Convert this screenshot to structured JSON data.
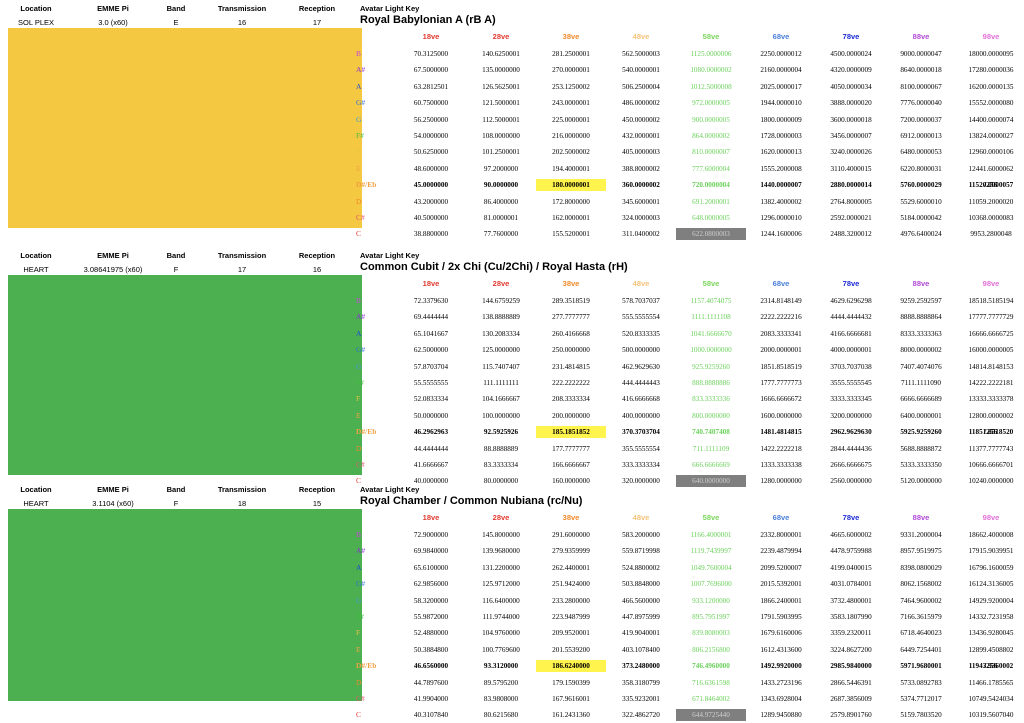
{
  "headers": {
    "location": "Location",
    "emme_pi": "EMME Pi",
    "band": "Band",
    "transmission": "Transmission",
    "reception": "Reception",
    "key": "Avatar Light Key"
  },
  "octaves": [
    "18ve",
    "28ve",
    "38ve",
    "48ve",
    "58ve",
    "68ve",
    "78ve",
    "88ve",
    "98ve"
  ],
  "octave_colors": [
    "#e03a2f",
    "#e03a2f",
    "#f08a2b",
    "#f5c27a",
    "#7ad65b",
    "#4a7fd8",
    "#1c2bd6",
    "#b04ad6",
    "#e36fd6"
  ],
  "notes": [
    "B",
    "A#",
    "A",
    "G#",
    "G",
    "F#",
    "F",
    "E",
    "D#/Eb",
    "D",
    "C#",
    "C"
  ],
  "note_colors": [
    "#c548d8",
    "#8e2fd6",
    "#1d4bd6",
    "#2f6fd6",
    "#3c9ad6",
    "#3fbf3f",
    "#e6c540",
    "#f4a340",
    "#f0a040",
    "#f08a2b",
    "#e0556b",
    "#e03a2f"
  ],
  "suffix": "/256",
  "sections": [
    {
      "location": "SOL PLEX",
      "emme_pi": "3.0 (x60)",
      "band": "E",
      "transmission": "16",
      "reception": "17",
      "title": "Royal Babylonian A (rB A)",
      "swatch": "#f5c842",
      "bold_row": 8,
      "rows": [
        [
          "70.3125000",
          "140.6250001",
          "281.2500001",
          "562.5000003",
          "1125.0000006",
          "2250.0000012",
          "4500.0000024",
          "9000.0000047",
          "18000.0000095"
        ],
        [
          "67.5000000",
          "135.0000000",
          "270.0000001",
          "540.0000001",
          "1080.0000002",
          "2160.0000004",
          "4320.0000009",
          "8640.0000018",
          "17280.0000036"
        ],
        [
          "63.2812501",
          "126.5625001",
          "253.1250002",
          "506.2500004",
          "1012.5000008",
          "2025.0000017",
          "4050.0000034",
          "8100.0000067",
          "16200.0000135"
        ],
        [
          "60.7500000",
          "121.5000001",
          "243.0000001",
          "486.0000002",
          "972.0000005",
          "1944.0000010",
          "3888.0000020",
          "7776.0000040",
          "15552.0000080"
        ],
        [
          "56.2500000",
          "112.5000001",
          "225.0000001",
          "450.0000002",
          "900.0000005",
          "1800.0000009",
          "3600.0000018",
          "7200.0000037",
          "14400.0000074"
        ],
        [
          "54.0000000",
          "108.0000000",
          "216.0000000",
          "432.0000001",
          "864.0000002",
          "1728.0000003",
          "3456.0000007",
          "6912.0000013",
          "13824.0000027"
        ],
        [
          "50.6250000",
          "101.2500001",
          "202.5000002",
          "405.0000003",
          "810.0000007",
          "1620.0000013",
          "3240.0000026",
          "6480.0000053",
          "12960.0000106"
        ],
        [
          "48.6000000",
          "97.2000000",
          "194.4000001",
          "388.8000002",
          "777.6000004",
          "1555.2000008",
          "3110.4000015",
          "6220.8000031",
          "12441.6000062"
        ],
        [
          "45.0000000",
          "90.0000000",
          "180.0000001",
          "360.0000002",
          "720.0000004",
          "1440.0000007",
          "2880.0000014",
          "5760.0000029",
          "11520.0000057"
        ],
        [
          "43.2000000",
          "86.4000000",
          "172.8000000",
          "345.6000001",
          "691.2000001",
          "1382.4000002",
          "2764.8000005",
          "5529.6000010",
          "11059.2000020"
        ],
        [
          "40.5000000",
          "81.0000001",
          "162.0000001",
          "324.0000003",
          "648.0000005",
          "1296.0000010",
          "2592.0000021",
          "5184.0000042",
          "10368.0000083"
        ],
        [
          "38.8800000",
          "77.7600000",
          "155.5200001",
          "311.0400002",
          "622.0800003",
          "1244.1600006",
          "2488.3200012",
          "4976.6400024",
          "9953.2800048"
        ]
      ]
    },
    {
      "location": "HEART",
      "emme_pi": "3.08641975 (x60)",
      "band": "F",
      "transmission": "17",
      "reception": "16",
      "title": "Common Cubit / 2x Chi (Cu/2Chi) / Royal Hasta (rH)",
      "swatch": "#4caf50",
      "bold_row": 8,
      "rows": [
        [
          "72.3379630",
          "144.6759259",
          "289.3518519",
          "578.7037037",
          "1157.4074075",
          "2314.8148149",
          "4629.6296298",
          "9259.2592597",
          "18518.5185194"
        ],
        [
          "69.4444444",
          "138.8888889",
          "277.7777777",
          "555.5555554",
          "1111.1111108",
          "2222.2222216",
          "4444.4444432",
          "8888.8888864",
          "17777.7777729"
        ],
        [
          "65.1041667",
          "130.2083334",
          "260.4166668",
          "520.8333335",
          "1041.6666670",
          "2083.3333341",
          "4166.6666681",
          "8333.3333363",
          "16666.6666725"
        ],
        [
          "62.5000000",
          "125.0000000",
          "250.0000000",
          "500.0000000",
          "1000.0000000",
          "2000.0000001",
          "4000.0000001",
          "8000.0000002",
          "16000.0000005"
        ],
        [
          "57.8703704",
          "115.7407407",
          "231.4814815",
          "462.9629630",
          "925.9259260",
          "1851.8518519",
          "3703.7037038",
          "7407.4074076",
          "14814.8148153"
        ],
        [
          "55.5555555",
          "111.1111111",
          "222.2222222",
          "444.4444443",
          "888.8888886",
          "1777.7777773",
          "3555.5555545",
          "7111.1111090",
          "14222.2222181"
        ],
        [
          "52.0833334",
          "104.1666667",
          "208.3333334",
          "416.6666668",
          "833.3333336",
          "1666.6666672",
          "3333.3333345",
          "6666.6666689",
          "13333.3333378"
        ],
        [
          "50.0000000",
          "100.0000000",
          "200.0000000",
          "400.0000000",
          "800.0000000",
          "1600.0000000",
          "3200.0000000",
          "6400.0000001",
          "12800.0000002"
        ],
        [
          "46.2962963",
          "92.5925926",
          "185.1851852",
          "370.3703704",
          "740.7407408",
          "1481.4814815",
          "2962.9629630",
          "5925.9259260",
          "11851.8518520"
        ],
        [
          "44.4444444",
          "88.8888889",
          "177.7777777",
          "355.5555554",
          "711.1111109",
          "1422.2222218",
          "2844.4444436",
          "5688.8888872",
          "11377.7777743"
        ],
        [
          "41.6666667",
          "83.3333334",
          "166.6666667",
          "333.3333334",
          "666.6666669",
          "1333.3333338",
          "2666.6666675",
          "5333.3333350",
          "10666.6666701"
        ],
        [
          "40.0000000",
          "80.0000000",
          "160.0000000",
          "320.0000000",
          "640.0000000",
          "1280.0000000",
          "2560.0000000",
          "5120.0000000",
          "10240.0000000"
        ]
      ]
    },
    {
      "location": "HEART",
      "emme_pi": "3.1104 (x60)",
      "band": "F",
      "transmission": "18",
      "reception": "15",
      "title": "Royal Chamber / Common Nubiana (rc/Nu)",
      "swatch": "#4caf50",
      "bold_row": 8,
      "rows": [
        [
          "72.9000000",
          "145.8000000",
          "291.6000000",
          "583.2000000",
          "1166.4000001",
          "2332.8000001",
          "4665.6000002",
          "9331.2000004",
          "18662.4000008"
        ],
        [
          "69.9840000",
          "139.9680000",
          "279.9359999",
          "559.8719998",
          "1119.7439997",
          "2239.4879994",
          "4478.9759988",
          "8957.9519975",
          "17915.9039951"
        ],
        [
          "65.6100000",
          "131.2200000",
          "262.4400001",
          "524.8800002",
          "1049.7600004",
          "2099.5200007",
          "4199.0400015",
          "8398.0800029",
          "16796.1600059"
        ],
        [
          "62.9856000",
          "125.9712000",
          "251.9424000",
          "503.8848000",
          "1007.7696000",
          "2015.5392001",
          "4031.0784001",
          "8062.1568002",
          "16124.3136005"
        ],
        [
          "58.3200000",
          "116.6400000",
          "233.2800000",
          "466.5600000",
          "933.1200000",
          "1866.2400001",
          "3732.4800001",
          "7464.9600002",
          "14929.9200004"
        ],
        [
          "55.9872000",
          "111.9744000",
          "223.9487999",
          "447.8975999",
          "895.7951997",
          "1791.5903995",
          "3583.1807990",
          "7166.3615979",
          "14332.7231958"
        ],
        [
          "52.4880000",
          "104.9760000",
          "209.9520001",
          "419.9040001",
          "839.8080003",
          "1679.6160006",
          "3359.2320011",
          "6718.4640023",
          "13436.9280045"
        ],
        [
          "50.3884800",
          "100.7769600",
          "201.5539200",
          "403.1078400",
          "806.2156800",
          "1612.4313600",
          "3224.8627200",
          "6449.7254401",
          "12899.4508802"
        ],
        [
          "46.6560000",
          "93.3120000",
          "186.6240000",
          "373.2480000",
          "746.4960000",
          "1492.9920000",
          "2985.9840000",
          "5971.9680001",
          "11943.9360002"
        ],
        [
          "44.7897600",
          "89.5795200",
          "179.1590399",
          "358.3180799",
          "716.6361598",
          "1433.2723196",
          "2866.5446391",
          "5733.0892783",
          "11466.1785565"
        ],
        [
          "41.9904000",
          "83.9808000",
          "167.9616001",
          "335.9232001",
          "671.8464002",
          "1343.6928004",
          "2687.3856009",
          "5374.7712017",
          "10749.5424034"
        ],
        [
          "40.3107840",
          "80.6215680",
          "161.2431360",
          "322.4862720",
          "644.9725440",
          "1289.9450880",
          "2579.8901760",
          "5159.7803520",
          "10319.5607040"
        ]
      ]
    }
  ]
}
